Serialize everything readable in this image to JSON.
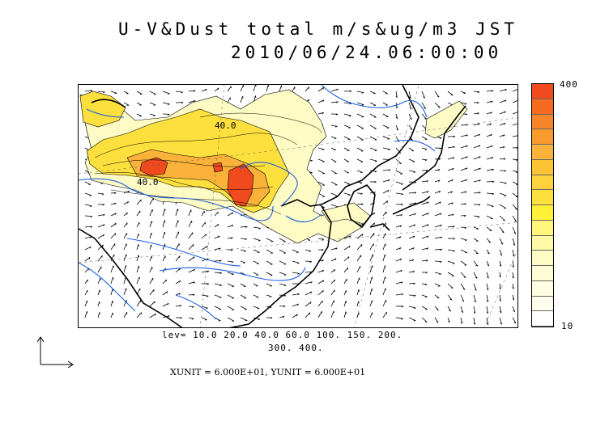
{
  "title": {
    "line1": "U-V&Dust total m/s&ug/m3 JST",
    "line2": "2010/06/24.06:00:00"
  },
  "colorbar": {
    "max_label": "400",
    "min_label": "10",
    "colors": [
      "#f04a1e",
      "#f46a1e",
      "#f6852a",
      "#f89a2c",
      "#fab23a",
      "#fcc434",
      "#fdd23e",
      "#fde03e",
      "#fff038",
      "#fff57a",
      "#fff8a6",
      "#fffbc4",
      "#fffcd6",
      "#fffde2",
      "#fffeec",
      "#ffffff"
    ]
  },
  "map": {
    "contour_label_a": "40.0",
    "contour_label_b": "40.0",
    "colors": {
      "coast": "#000000",
      "river": "#1f5fe0",
      "dust_low": "#fffbc4",
      "dust_mid": "#fde03e",
      "dust_high": "#fab23a",
      "dust_max": "#f04a1e"
    }
  },
  "levels": {
    "line1": "lev= 10.0 20.0 40.0 60.0 100. 150. 200.",
    "line2": "300. 400."
  },
  "units": {
    "text": "XUNIT = 6.000E+01, YUNIT = 6.000E+01"
  },
  "icons": {
    "reference_vector": "axis-arrows-icon"
  }
}
